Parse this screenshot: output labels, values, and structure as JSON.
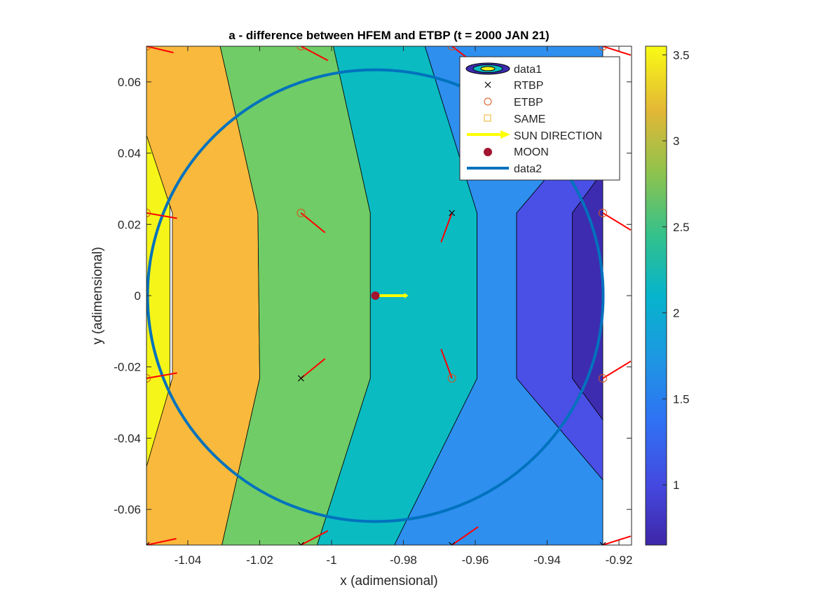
{
  "chart_data": {
    "type": "contour",
    "title": "a - difference between HFEM and ETBP (t = 2000 JAN 21)",
    "xlabel": "x (adimensional)",
    "ylabel": "y (adimensional)",
    "xlim": [
      -1.0515,
      -0.9165
    ],
    "ylim": [
      -0.07,
      0.07
    ],
    "grid": false,
    "xticks": [
      -1.04,
      -1.02,
      -1,
      -0.98,
      -0.96,
      -0.94,
      -0.92
    ],
    "xtick_labels": [
      "-1.04",
      "-1.02",
      "-1",
      "-0.98",
      "-0.96",
      "-0.94",
      "-0.92"
    ],
    "yticks": [
      -0.06,
      -0.04,
      -0.02,
      0,
      0.02,
      0.04,
      0.06
    ],
    "ytick_labels": [
      "-0.06",
      "-0.04",
      "-0.02",
      "0",
      "0.02",
      "0.04",
      "0.06"
    ],
    "colorbar": {
      "colormap": "parula",
      "range": [
        0.65,
        3.55
      ],
      "ticks": [
        1,
        1.5,
        2,
        2.5,
        3,
        3.5
      ],
      "tick_labels": [
        "1",
        "1.5",
        "2",
        "2.5",
        "3",
        "3.5"
      ]
    },
    "contour_bands": [
      {
        "level": 3.5,
        "color": "#F5F519",
        "polygon": [
          [
            -1.0515,
            -0.07
          ],
          [
            -1.0515,
            0.07
          ],
          [
            -1.045,
            0.07
          ],
          [
            -1.045,
            -0.07
          ]
        ]
      },
      {
        "level": 3.0,
        "color": "#F8B93C",
        "polygon": [
          [
            -1.0515,
            0.07
          ],
          [
            -1.0515,
            0.045
          ],
          [
            -1.0443,
            0.0232
          ],
          [
            -1.0443,
            -0.0232
          ],
          [
            -1.0515,
            -0.048
          ],
          [
            -1.0515,
            -0.07
          ],
          [
            -1.0305,
            -0.07
          ],
          [
            -1.02,
            -0.0232
          ],
          [
            -1.0205,
            0.0232
          ],
          [
            -1.031,
            0.07
          ]
        ]
      },
      {
        "level": 2.5,
        "color": "#70CC66",
        "polygon": [
          [
            -1.031,
            0.07
          ],
          [
            -1.0205,
            0.0232
          ],
          [
            -1.02,
            -0.0232
          ],
          [
            -1.0305,
            -0.07
          ],
          [
            -1.004,
            -0.07
          ],
          [
            -0.9892,
            -0.0232
          ],
          [
            -0.9892,
            0.0232
          ],
          [
            -0.9995,
            0.07
          ]
        ]
      },
      {
        "level": 2.0,
        "color": "#0ABBC2",
        "polygon": [
          [
            -0.9995,
            0.07
          ],
          [
            -0.9892,
            0.0232
          ],
          [
            -0.9892,
            -0.0232
          ],
          [
            -1.004,
            -0.07
          ],
          [
            -0.9825,
            -0.07
          ],
          [
            -0.9595,
            -0.0232
          ],
          [
            -0.9595,
            0.0232
          ],
          [
            -0.974,
            0.07
          ]
        ]
      },
      {
        "level": 1.5,
        "color": "#2E8FEF",
        "polygon": [
          [
            -0.974,
            0.07
          ],
          [
            -0.9595,
            0.0232
          ],
          [
            -0.9595,
            -0.0232
          ],
          [
            -0.9825,
            -0.07
          ],
          [
            -0.9245,
            -0.07
          ],
          [
            -0.9245,
            -0.0517
          ],
          [
            -0.9485,
            -0.0232
          ],
          [
            -0.9485,
            0.0232
          ],
          [
            -0.9245,
            0.0517
          ],
          [
            -0.9245,
            0.07
          ]
        ]
      },
      {
        "level": 1.0,
        "color": "#4A4FE6",
        "polygon": [
          [
            -0.9245,
            0.0517
          ],
          [
            -0.9485,
            0.0232
          ],
          [
            -0.9485,
            -0.0232
          ],
          [
            -0.9245,
            -0.0517
          ],
          [
            -0.9245,
            -0.0348
          ],
          [
            -0.933,
            -0.0232
          ],
          [
            -0.933,
            0.0232
          ],
          [
            -0.9245,
            0.0348
          ]
        ]
      },
      {
        "level": 0.7,
        "color": "#3D2CB0",
        "polygon": [
          [
            -0.9245,
            0.0348
          ],
          [
            -0.933,
            0.0232
          ],
          [
            -0.933,
            -0.0232
          ],
          [
            -0.9245,
            -0.0348
          ]
        ]
      }
    ],
    "grid_nodes": [
      {
        "x": -1.0515,
        "y": 0.07,
        "marker": "ETBP",
        "vector": [
          0.0075,
          -0.0018
        ]
      },
      {
        "x": -1.0515,
        "y": 0.0232,
        "marker": "ETBP",
        "vector": [
          0.0085,
          -0.0015
        ]
      },
      {
        "x": -1.0515,
        "y": -0.0232,
        "marker": "ETBP",
        "vector": [
          0.0085,
          0.0015
        ]
      },
      {
        "x": -1.0515,
        "y": -0.07,
        "marker": "RTBP",
        "vector": [
          0.0083,
          0.0018
        ]
      },
      {
        "x": -1.0085,
        "y": 0.07,
        "marker": "ETBP",
        "vector": [
          0.0075,
          -0.004
        ]
      },
      {
        "x": -1.0085,
        "y": 0.0232,
        "marker": "ETBP",
        "vector": [
          0.0067,
          -0.0055
        ]
      },
      {
        "x": -1.0085,
        "y": -0.0232,
        "marker": "RTBP",
        "vector": [
          0.0067,
          0.0055
        ]
      },
      {
        "x": -1.0085,
        "y": -0.07,
        "marker": "RTBP",
        "vector": [
          0.0075,
          0.004
        ]
      },
      {
        "x": -0.9665,
        "y": 0.07,
        "marker": "ETBP",
        "vector": [
          0.0043,
          -0.0033
        ]
      },
      {
        "x": -0.9665,
        "y": 0.0232,
        "marker": "RTBP",
        "vector": [
          -0.003,
          -0.0082
        ]
      },
      {
        "x": -0.9665,
        "y": -0.0232,
        "marker": "ETBP",
        "vector": [
          -0.003,
          0.0082
        ]
      },
      {
        "x": -0.9665,
        "y": -0.07,
        "marker": "RTBP",
        "vector": [
          0.0073,
          0.0051
        ]
      },
      {
        "x": -0.9245,
        "y": 0.07,
        "marker": "ETBP",
        "vector": [
          0.0078,
          -0.0025
        ]
      },
      {
        "x": -0.9245,
        "y": 0.0232,
        "marker": "ETBP",
        "vector": [
          0.0078,
          -0.0048
        ]
      },
      {
        "x": -0.9245,
        "y": -0.0232,
        "marker": "ETBP",
        "vector": [
          0.0078,
          0.0048
        ]
      },
      {
        "x": -0.9245,
        "y": -0.07,
        "marker": "RTBP",
        "vector": [
          0.0078,
          0.0025
        ]
      }
    ],
    "circle": {
      "center": [
        -0.9878,
        0
      ],
      "radius_x": 0.0634,
      "radius_y": 0.0634,
      "color": "#0072BD"
    },
    "moon": {
      "x": -0.9878,
      "y": 0,
      "color": "#A2142F"
    },
    "sun_direction": {
      "x": -0.9878,
      "y": 0,
      "dx": 0.0092,
      "dy": 0,
      "color": "#FFFF00"
    },
    "legend": {
      "location": "northeast",
      "entries": [
        {
          "label": "data1",
          "symbol": "contour"
        },
        {
          "label": "RTBP",
          "symbol": "x"
        },
        {
          "label": "ETBP",
          "symbol": "circle"
        },
        {
          "label": "SAME",
          "symbol": "square"
        },
        {
          "label": "SUN DIRECTION",
          "symbol": "arrow"
        },
        {
          "label": "MOON",
          "symbol": "dot"
        },
        {
          "label": "data2",
          "symbol": "line"
        }
      ]
    },
    "colors": {
      "vector": "#FF0000",
      "etbp_marker": "#D95319",
      "same_marker": "#EDB120",
      "rtbp_marker": "#000000"
    }
  }
}
